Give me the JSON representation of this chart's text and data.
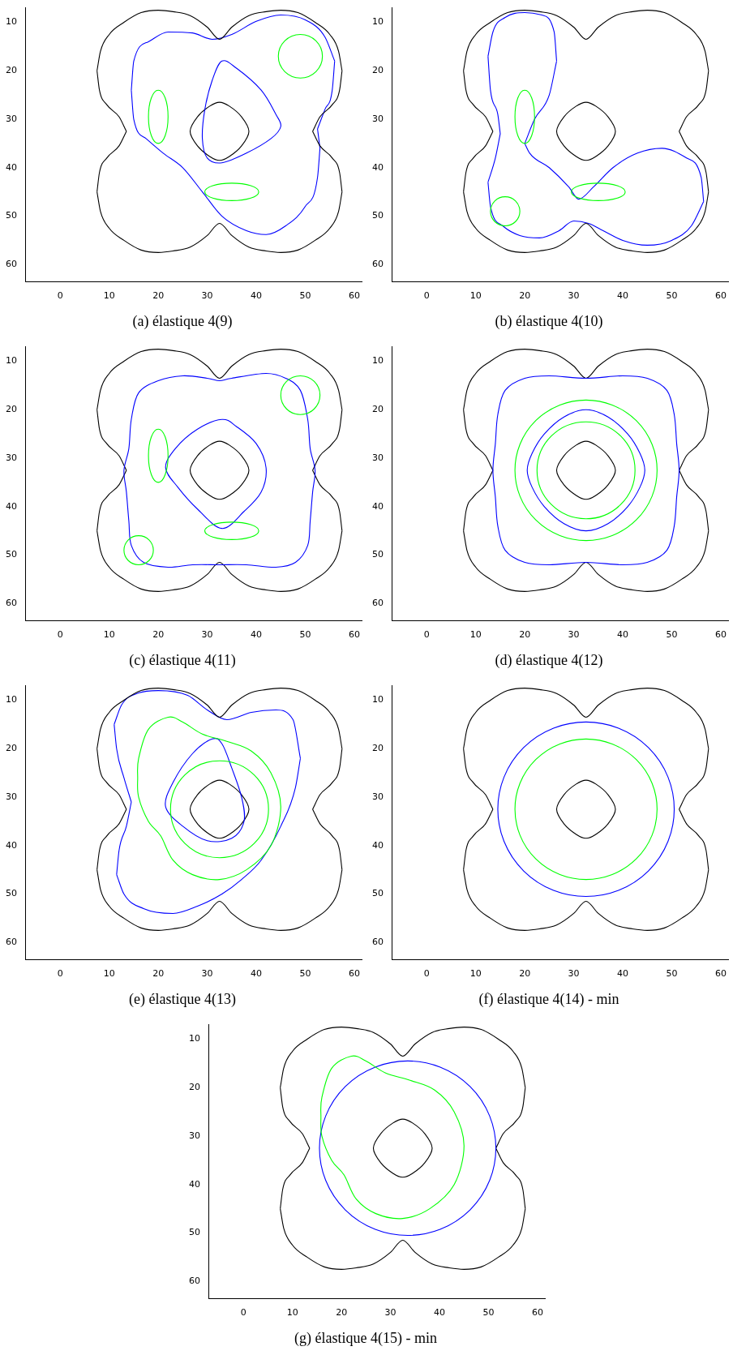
{
  "chart_data": [
    {
      "type": "line",
      "title": "(a) élastique 4(9)",
      "xlim": [
        -7,
        61.5
      ],
      "ylim": [
        63.5,
        7
      ],
      "xticks": [
        0,
        10,
        20,
        30,
        40,
        50,
        60
      ],
      "yticks": [
        10,
        20,
        30,
        40,
        50,
        60
      ],
      "grid": false,
      "legend": false,
      "marker": "none",
      "series": [
        {
          "color": "#000000",
          "x": [
            7.5,
            8.2,
            10,
            13,
            16.5,
            20,
            23,
            26.5,
            30,
            32.5,
            35,
            38.5,
            42,
            45,
            48.5,
            52,
            55,
            56.8,
            57.5
          ],
          "values": [
            20,
            16,
            12.5,
            10,
            8,
            7.5,
            7.8,
            8.6,
            11,
            13.5,
            11,
            8.6,
            7.8,
            7.5,
            8,
            10,
            12.5,
            16,
            20
          ]
        },
        {
          "color": "#000000",
          "x": [
            51.5,
            53,
            55.5,
            57,
            57.5
          ],
          "values": [
            32.5,
            29.5,
            27,
            24,
            20
          ]
        },
        {
          "color": "#000000",
          "x": [
            51.5,
            53,
            55.5,
            57,
            57.5
          ],
          "values": [
            32.5,
            35.5,
            38,
            41,
            45
          ]
        },
        {
          "color": "#000000",
          "x": [
            7.5,
            8.2,
            10,
            13,
            16.5,
            20,
            23,
            26.5,
            30,
            32.5,
            35,
            38.5,
            42,
            45,
            48.5,
            52,
            55,
            56.8,
            57.5
          ],
          "values": [
            45,
            49,
            52.5,
            55,
            57,
            57.5,
            57.2,
            56.4,
            54,
            51.5,
            54,
            56.4,
            57.2,
            57.5,
            57,
            55,
            52.5,
            49,
            45
          ]
        },
        {
          "color": "#000000",
          "x": [
            7.5,
            8,
            9.5,
            12,
            13.5
          ],
          "values": [
            45,
            41,
            38,
            35.5,
            32.5
          ]
        },
        {
          "color": "#000000",
          "x": [
            7.5,
            8,
            9.5,
            12,
            13.5
          ],
          "values": [
            20,
            24,
            27,
            29.5,
            32.5
          ]
        },
        {
          "color": "#0000ff",
          "x": [
            14.5,
            15,
            18,
            22,
            27,
            31,
            35,
            40,
            45,
            50,
            54,
            56
          ],
          "values": [
            24,
            18,
            14,
            12,
            12.2,
            13.5,
            12.5,
            9.8,
            8.5,
            9.5,
            13,
            18
          ]
        },
        {
          "color": "#0000ff",
          "x": [
            52.5,
            54,
            55.5,
            56
          ],
          "values": [
            32,
            28,
            24,
            18
          ]
        },
        {
          "color": "#0000ff",
          "x": [
            52.5,
            53
          ],
          "values": [
            32,
            36
          ]
        },
        {
          "color": "#0000ff",
          "x": [
            14.5,
            15,
            17.5,
            21,
            25,
            29,
            33,
            38,
            42,
            46,
            50,
            52.5,
            53
          ],
          "values": [
            24,
            30,
            34,
            37,
            40,
            45,
            50,
            53,
            53.8,
            52,
            48,
            42,
            36
          ]
        }
      ]
    },
    {
      "type": "line",
      "title": "(b) élastique 4(10)",
      "xlim": [
        -7,
        61.5
      ],
      "ylim": [
        63.5,
        7
      ],
      "xticks": [
        0,
        10,
        20,
        30,
        40,
        50,
        60
      ],
      "yticks": [
        10,
        20,
        30,
        40,
        50,
        60
      ],
      "grid": false,
      "legend": false,
      "marker": "none",
      "series": [
        {
          "color": "#000000",
          "x": [
            7.5,
            8.2,
            10,
            13,
            16.5,
            20,
            23,
            26.5,
            30,
            32.5,
            35,
            38.5,
            42,
            45,
            48.5,
            52,
            55,
            56.8,
            57.5
          ],
          "values": [
            20,
            16,
            12.5,
            10,
            8,
            7.5,
            7.8,
            8.6,
            11,
            13.5,
            11,
            8.6,
            7.8,
            7.5,
            8,
            10,
            12.5,
            16,
            20
          ]
        },
        {
          "color": "#000000",
          "x": [
            51.5,
            53,
            55.5,
            57,
            57.5
          ],
          "values": [
            32.5,
            29.5,
            27,
            24,
            20
          ]
        },
        {
          "color": "#000000",
          "x": [
            51.5,
            53,
            55.5,
            57,
            57.5
          ],
          "values": [
            32.5,
            35.5,
            38,
            41,
            45
          ]
        },
        {
          "color": "#000000",
          "x": [
            7.5,
            8.2,
            10,
            13,
            16.5,
            20,
            23,
            26.5,
            30,
            32.5,
            35,
            38.5,
            42,
            45,
            48.5,
            52,
            55,
            56.8,
            57.5
          ],
          "values": [
            45,
            49,
            52.5,
            55,
            57,
            57.5,
            57.2,
            56.4,
            54,
            51.5,
            54,
            56.4,
            57.2,
            57.5,
            57,
            55,
            52.5,
            49,
            45
          ]
        },
        {
          "color": "#000000",
          "x": [
            7.5,
            8,
            9.5,
            12,
            13.5
          ],
          "values": [
            45,
            41,
            38,
            35.5,
            32.5
          ]
        },
        {
          "color": "#000000",
          "x": [
            7.5,
            8,
            9.5,
            12,
            13.5
          ],
          "values": [
            20,
            24,
            27,
            29.5,
            32.5
          ]
        },
        {
          "color": "#0000ff",
          "x": [
            12.5,
            13.5,
            16,
            20,
            23.5,
            26,
            26.5
          ],
          "values": [
            17,
            12,
            9,
            8,
            8.5,
            12,
            18
          ]
        },
        {
          "color": "#0000ff",
          "x": [
            12.5,
            13,
            14.5,
            15
          ],
          "values": [
            17,
            24,
            29,
            33
          ]
        },
        {
          "color": "#0000ff",
          "x": [
            12.5,
            14,
            15
          ],
          "values": [
            43,
            38,
            33
          ]
        },
        {
          "color": "#0000ff",
          "x": [
            12.5,
            13,
            15.5,
            19,
            23,
            27,
            30,
            33,
            36,
            40,
            45,
            50,
            54,
            56.5
          ],
          "values": [
            43,
            48,
            52,
            54,
            54.5,
            53,
            51,
            51.5,
            53,
            55,
            56,
            55,
            52,
            47
          ]
        },
        {
          "color": "#0000ff",
          "x": [
            20,
            21,
            25,
            29,
            31,
            34,
            38,
            43,
            48,
            53,
            56,
            56.5
          ],
          "values": [
            35,
            37,
            40,
            44,
            46.5,
            44,
            40,
            37,
            36,
            38,
            42,
            47
          ]
        },
        {
          "color": "#0000ff",
          "x": [
            20,
            22,
            25,
            26.5
          ],
          "values": [
            35,
            30,
            25,
            18
          ]
        }
      ]
    },
    {
      "type": "line",
      "title": "(c) élastique 4(11)",
      "xlim": [
        -7,
        61.5
      ],
      "ylim": [
        63.5,
        7
      ],
      "xticks": [
        0,
        10,
        20,
        30,
        40,
        50,
        60
      ],
      "yticks": [
        10,
        20,
        30,
        40,
        50,
        60
      ],
      "grid": false,
      "legend": false,
      "marker": "none",
      "series": [
        {
          "color": "#000000",
          "x": [
            7.5,
            8.2,
            10,
            13,
            16.5,
            20,
            23,
            26.5,
            30,
            32.5,
            35,
            38.5,
            42,
            45,
            48.5,
            52,
            55,
            56.8,
            57.5
          ],
          "values": [
            20,
            16,
            12.5,
            10,
            8,
            7.5,
            7.8,
            8.6,
            11,
            13.5,
            11,
            8.6,
            7.8,
            7.5,
            8,
            10,
            12.5,
            16,
            20
          ]
        },
        {
          "color": "#000000",
          "x": [
            51.5,
            53,
            55.5,
            57,
            57.5
          ],
          "values": [
            32.5,
            29.5,
            27,
            24,
            20
          ]
        },
        {
          "color": "#000000",
          "x": [
            51.5,
            53,
            55.5,
            57,
            57.5
          ],
          "values": [
            32.5,
            35.5,
            38,
            41,
            45
          ]
        },
        {
          "color": "#000000",
          "x": [
            7.5,
            8.2,
            10,
            13,
            16.5,
            20,
            23,
            26.5,
            30,
            32.5,
            35,
            38.5,
            42,
            45,
            48.5,
            52,
            55,
            56.8,
            57.5
          ],
          "values": [
            45,
            49,
            52.5,
            55,
            57,
            57.5,
            57.2,
            56.4,
            54,
            51.5,
            54,
            56.4,
            57.2,
            57.5,
            57,
            55,
            52.5,
            49,
            45
          ]
        },
        {
          "color": "#000000",
          "x": [
            7.5,
            8,
            9.5,
            12,
            13.5
          ],
          "values": [
            45,
            41,
            38,
            35.5,
            32.5
          ]
        },
        {
          "color": "#000000",
          "x": [
            7.5,
            8,
            9.5,
            12,
            13.5
          ],
          "values": [
            20,
            24,
            27,
            29.5,
            32.5
          ]
        }
      ]
    },
    {
      "type": "line",
      "title": "(d) élastique 4(12)",
      "xlim": [
        -7,
        61.5
      ],
      "ylim": [
        63.5,
        7
      ],
      "xticks": [
        0,
        10,
        20,
        30,
        40,
        50,
        60
      ],
      "yticks": [
        10,
        20,
        30,
        40,
        50,
        60
      ],
      "grid": false,
      "legend": false,
      "marker": "none",
      "series": [
        {
          "color": "#000000",
          "x": [
            7.5,
            8.2,
            10,
            13,
            16.5,
            20,
            23,
            26.5,
            30,
            32.5,
            35,
            38.5,
            42,
            45,
            48.5,
            52,
            55,
            56.8,
            57.5
          ],
          "values": [
            20,
            16,
            12.5,
            10,
            8,
            7.5,
            7.8,
            8.6,
            11,
            13.5,
            11,
            8.6,
            7.8,
            7.5,
            8,
            10,
            12.5,
            16,
            20
          ]
        },
        {
          "color": "#000000",
          "x": [
            51.5,
            53,
            55.5,
            57,
            57.5
          ],
          "values": [
            32.5,
            29.5,
            27,
            24,
            20
          ]
        },
        {
          "color": "#000000",
          "x": [
            51.5,
            53,
            55.5,
            57,
            57.5
          ],
          "values": [
            32.5,
            35.5,
            38,
            41,
            45
          ]
        },
        {
          "color": "#000000",
          "x": [
            7.5,
            8.2,
            10,
            13,
            16.5,
            20,
            23,
            26.5,
            30,
            32.5,
            35,
            38.5,
            42,
            45,
            48.5,
            52,
            55,
            56.8,
            57.5
          ],
          "values": [
            45,
            49,
            52.5,
            55,
            57,
            57.5,
            57.2,
            56.4,
            54,
            51.5,
            54,
            56.4,
            57.2,
            57.5,
            57,
            55,
            52.5,
            49,
            45
          ]
        },
        {
          "color": "#000000",
          "x": [
            7.5,
            8,
            9.5,
            12,
            13.5
          ],
          "values": [
            45,
            41,
            38,
            35.5,
            32.5
          ]
        },
        {
          "color": "#000000",
          "x": [
            7.5,
            8,
            9.5,
            12,
            13.5
          ],
          "values": [
            20,
            24,
            27,
            29.5,
            32.5
          ]
        }
      ]
    },
    {
      "type": "line",
      "title": "(e) élastique 4(13)",
      "xlim": [
        -7,
        61.5
      ],
      "ylim": [
        63.5,
        7
      ],
      "xticks": [
        0,
        10,
        20,
        30,
        40,
        50,
        60
      ],
      "yticks": [
        10,
        20,
        30,
        40,
        50,
        60
      ],
      "grid": false,
      "legend": false,
      "marker": "none",
      "series": [
        {
          "color": "#000000",
          "x": [
            7.5,
            8.2,
            10,
            13,
            16.5,
            20,
            23,
            26.5,
            30,
            32.5,
            35,
            38.5,
            42,
            45,
            48.5,
            52,
            55,
            56.8,
            57.5
          ],
          "values": [
            20,
            16,
            12.5,
            10,
            8,
            7.5,
            7.8,
            8.6,
            11,
            13.5,
            11,
            8.6,
            7.8,
            7.5,
            8,
            10,
            12.5,
            16,
            20
          ]
        },
        {
          "color": "#000000",
          "x": [
            51.5,
            53,
            55.5,
            57,
            57.5
          ],
          "values": [
            32.5,
            29.5,
            27,
            24,
            20
          ]
        },
        {
          "color": "#000000",
          "x": [
            51.5,
            53,
            55.5,
            57,
            57.5
          ],
          "values": [
            32.5,
            35.5,
            38,
            41,
            45
          ]
        },
        {
          "color": "#000000",
          "x": [
            7.5,
            8.2,
            10,
            13,
            16.5,
            20,
            23,
            26.5,
            30,
            32.5,
            35,
            38.5,
            42,
            45,
            48.5,
            52,
            55,
            56.8,
            57.5
          ],
          "values": [
            45,
            49,
            52.5,
            55,
            57,
            57.5,
            57.2,
            56.4,
            54,
            51.5,
            54,
            56.4,
            57.2,
            57.5,
            57,
            55,
            52.5,
            49,
            45
          ]
        },
        {
          "color": "#000000",
          "x": [
            7.5,
            8,
            9.5,
            12,
            13.5
          ],
          "values": [
            45,
            41,
            38,
            35.5,
            32.5
          ]
        },
        {
          "color": "#000000",
          "x": [
            7.5,
            8,
            9.5,
            12,
            13.5
          ],
          "values": [
            20,
            24,
            27,
            29.5,
            32.5
          ]
        },
        {
          "color": "#0000ff",
          "x": [
            11,
            12.5,
            16,
            20,
            26,
            30,
            34,
            39,
            44,
            47.5,
            49
          ],
          "values": [
            15,
            11,
            8.5,
            8,
            9,
            12,
            14,
            12.5,
            12,
            14,
            22
          ]
        },
        {
          "color": "#0000ff",
          "x": [
            11,
            11.5,
            13,
            14.5
          ],
          "values": [
            15,
            20,
            26,
            31
          ]
        },
        {
          "color": "#0000ff",
          "x": [
            11.5,
            12,
            13.5,
            14.5
          ],
          "values": [
            46,
            41,
            36,
            31
          ]
        },
        {
          "color": "#0000ff",
          "x": [
            11.5,
            13,
            17,
            23,
            28,
            33,
            37,
            41,
            45,
            48,
            49
          ],
          "values": [
            46,
            50,
            53,
            54,
            52.5,
            50,
            47,
            43,
            36,
            28,
            22
          ]
        }
      ]
    },
    {
      "type": "line",
      "title": "(f) élastique 4(14) - min",
      "xlim": [
        -7,
        61.5
      ],
      "ylim": [
        63.5,
        7
      ],
      "xticks": [
        0,
        10,
        20,
        30,
        40,
        50,
        60
      ],
      "yticks": [
        10,
        20,
        30,
        40,
        50,
        60
      ],
      "grid": false,
      "legend": false,
      "marker": "none",
      "series": [
        {
          "color": "#000000",
          "x": [
            7.5,
            8.2,
            10,
            13,
            16.5,
            20,
            23,
            26.5,
            30,
            32.5,
            35,
            38.5,
            42,
            45,
            48.5,
            52,
            55,
            56.8,
            57.5
          ],
          "values": [
            20,
            16,
            12.5,
            10,
            8,
            7.5,
            7.8,
            8.6,
            11,
            13.5,
            11,
            8.6,
            7.8,
            7.5,
            8,
            10,
            12.5,
            16,
            20
          ]
        },
        {
          "color": "#000000",
          "x": [
            51.5,
            53,
            55.5,
            57,
            57.5
          ],
          "values": [
            32.5,
            29.5,
            27,
            24,
            20
          ]
        },
        {
          "color": "#000000",
          "x": [
            51.5,
            53,
            55.5,
            57,
            57.5
          ],
          "values": [
            32.5,
            35.5,
            38,
            41,
            45
          ]
        },
        {
          "color": "#000000",
          "x": [
            7.5,
            8.2,
            10,
            13,
            16.5,
            20,
            23,
            26.5,
            30,
            32.5,
            35,
            38.5,
            42,
            45,
            48.5,
            52,
            55,
            56.8,
            57.5
          ],
          "values": [
            45,
            49,
            52.5,
            55,
            57,
            57.5,
            57.2,
            56.4,
            54,
            51.5,
            54,
            56.4,
            57.2,
            57.5,
            57,
            55,
            52.5,
            49,
            45
          ]
        },
        {
          "color": "#000000",
          "x": [
            7.5,
            8,
            9.5,
            12,
            13.5
          ],
          "values": [
            45,
            41,
            38,
            35.5,
            32.5
          ]
        },
        {
          "color": "#000000",
          "x": [
            7.5,
            8,
            9.5,
            12,
            13.5
          ],
          "values": [
            20,
            24,
            27,
            29.5,
            32.5
          ]
        }
      ]
    },
    {
      "type": "line",
      "title": "(g) élastique 4(15) - min",
      "xlim": [
        -7,
        61.5
      ],
      "ylim": [
        63.5,
        7
      ],
      "xticks": [
        0,
        10,
        20,
        30,
        40,
        50,
        60
      ],
      "yticks": [
        10,
        20,
        30,
        40,
        50,
        60
      ],
      "grid": false,
      "legend": false,
      "marker": "none",
      "series": [
        {
          "color": "#000000",
          "x": [
            7.5,
            8.2,
            10,
            13,
            16.5,
            20,
            23,
            26.5,
            30,
            32.5,
            35,
            38.5,
            42,
            45,
            48.5,
            52,
            55,
            56.8,
            57.5
          ],
          "values": [
            20,
            16,
            12.5,
            10,
            8,
            7.5,
            7.8,
            8.6,
            11,
            13.5,
            11,
            8.6,
            7.8,
            7.5,
            8,
            10,
            12.5,
            16,
            20
          ]
        },
        {
          "color": "#000000",
          "x": [
            51.5,
            53,
            55.5,
            57,
            57.5
          ],
          "values": [
            32.5,
            29.5,
            27,
            24,
            20
          ]
        },
        {
          "color": "#000000",
          "x": [
            51.5,
            53,
            55.5,
            57,
            57.5
          ],
          "values": [
            32.5,
            35.5,
            38,
            41,
            45
          ]
        },
        {
          "color": "#000000",
          "x": [
            7.5,
            8.2,
            10,
            13,
            16.5,
            20,
            23,
            26.5,
            30,
            32.5,
            35,
            38.5,
            42,
            45,
            48.5,
            52,
            55,
            56.8,
            57.5
          ],
          "values": [
            45,
            49,
            52.5,
            55,
            57,
            57.5,
            57.2,
            56.4,
            54,
            51.5,
            54,
            56.4,
            57.2,
            57.5,
            57,
            55,
            52.5,
            49,
            45
          ]
        },
        {
          "color": "#000000",
          "x": [
            7.5,
            8,
            9.5,
            12,
            13.5
          ],
          "values": [
            45,
            41,
            38,
            35.5,
            32.5
          ]
        },
        {
          "color": "#000000",
          "x": [
            7.5,
            8,
            9.5,
            12,
            13.5
          ],
          "values": [
            20,
            24,
            27,
            29.5,
            32.5
          ]
        }
      ]
    }
  ]
}
